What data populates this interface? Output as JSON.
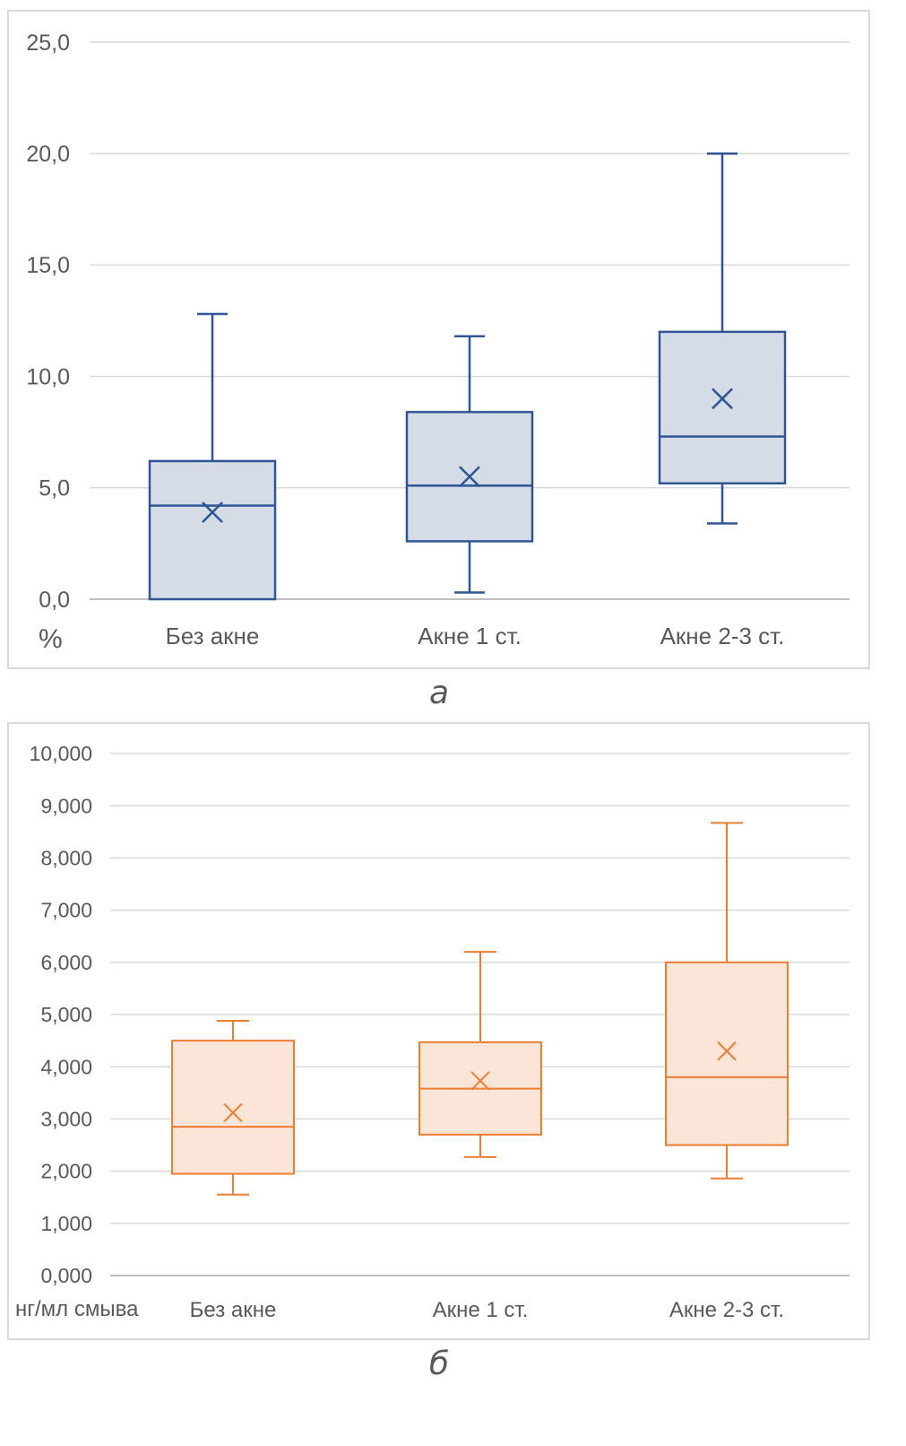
{
  "chart_data": [
    {
      "id": "a",
      "type": "boxplot",
      "caption": "а",
      "unit_label": "%",
      "ylim": [
        0,
        25
      ],
      "ytick_values": [
        0,
        5,
        10,
        15,
        20,
        25
      ],
      "ytick_labels": [
        "0,0",
        "5,0",
        "10,0",
        "15,0",
        "20,0",
        "25,0"
      ],
      "categories": [
        "Без акне",
        "Акне 1 ст.",
        "Акне 2-3 ст."
      ],
      "series": [
        {
          "name": "Без акне",
          "min": 0.0,
          "q1": 0.0,
          "median": 4.2,
          "q3": 6.2,
          "max": 12.8,
          "mean": 3.9
        },
        {
          "name": "Акне 1 ст.",
          "min": 0.3,
          "q1": 2.6,
          "median": 5.1,
          "q3": 8.4,
          "max": 11.8,
          "mean": 5.5
        },
        {
          "name": "Акне 2-3 ст.",
          "min": 3.4,
          "q1": 5.2,
          "median": 7.3,
          "q3": 12.0,
          "max": 20.0,
          "mean": 9.0
        }
      ],
      "colors": {
        "stroke": "#2f5597",
        "fill": "#d6dce5"
      }
    },
    {
      "id": "b",
      "type": "boxplot",
      "caption": "б",
      "unit_label": "нг/мл смыва",
      "ylim": [
        0,
        10
      ],
      "ytick_values": [
        0,
        1,
        2,
        3,
        4,
        5,
        6,
        7,
        8,
        9,
        10
      ],
      "ytick_labels": [
        "0,000",
        "1,000",
        "2,000",
        "3,000",
        "4,000",
        "5,000",
        "6,000",
        "7,000",
        "8,000",
        "9,000",
        "10,000"
      ],
      "categories": [
        "Без акне",
        "Акне 1 ст.",
        "Акне 2-3 ст."
      ],
      "series": [
        {
          "name": "Без акне",
          "min": 1.55,
          "q1": 1.95,
          "median": 2.85,
          "q3": 4.5,
          "max": 4.88,
          "mean": 3.12
        },
        {
          "name": "Акне 1 ст.",
          "min": 2.27,
          "q1": 2.7,
          "median": 3.58,
          "q3": 4.47,
          "max": 6.2,
          "mean": 3.73
        },
        {
          "name": "Акне 2-3 ст.",
          "min": 1.86,
          "q1": 2.5,
          "median": 3.8,
          "q3": 6.0,
          "max": 8.67,
          "mean": 4.3
        }
      ],
      "colors": {
        "stroke": "#ed7d31",
        "fill": "#fbe5d6"
      }
    }
  ]
}
